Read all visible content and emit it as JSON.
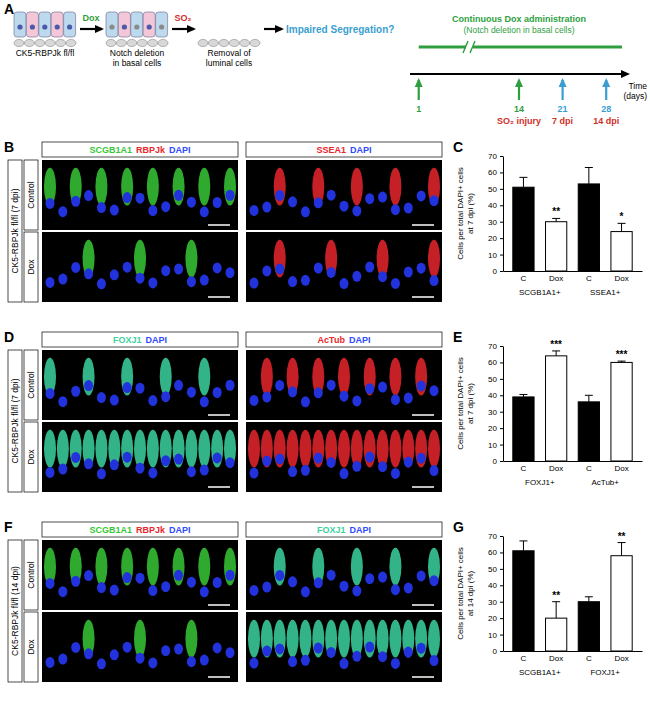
{
  "figure": {
    "schematic": {
      "letter": "A",
      "stages": [
        [
          "CK5-RBPJk fl/fl"
        ],
        [
          "Notch deletion",
          "in basal cells"
        ],
        [
          "Removal of",
          "luminal cells"
        ]
      ],
      "steps": [
        {
          "text": "Dox",
          "color": "#2e9e3e"
        },
        {
          "text": "SO₂",
          "color": "#d0302a"
        }
      ],
      "question": {
        "text": "Impaired Segregation?",
        "color": "#3a9fd0"
      },
      "timeline": {
        "bar_label": [
          "Continuous Dox administration",
          "(Notch deletion in basal cells)"
        ],
        "bar_color": "#2e9e3e",
        "axis_label": [
          "Time",
          "(days)"
        ],
        "points": [
          {
            "day": 1,
            "color": "#2e9e3e"
          },
          {
            "day": 14,
            "color": "#2e9e3e",
            "label": "SO₂ injury",
            "label_color": "#d0302a"
          },
          {
            "day": 21,
            "color": "#3a9fd0",
            "label": "7 dpi",
            "label_color": "#d0302a"
          },
          {
            "day": 28,
            "color": "#3a9fd0",
            "label": "14 dpi",
            "label_color": "#d0302a"
          }
        ]
      }
    },
    "image_rows": [
      {
        "letter": "B",
        "row_label": "CK5-RBPJk fl/fl (7 dpi)",
        "conditions": [
          "Control",
          "Dox"
        ],
        "columns": [
          [
            {
              "text": "SCGB1A1",
              "color": "#37c837"
            },
            {
              "text": "RBPJk",
              "color": "#e8262b"
            },
            {
              "text": "DAPI",
              "color": "#2f4bff"
            }
          ],
          [
            {
              "text": "SSEA1",
              "color": "#e8262b"
            },
            {
              "text": "DAPI",
              "color": "#2f4bff"
            }
          ]
        ]
      },
      {
        "letter": "D",
        "row_label": "CK5-RBPJk fl/fl (7 dpi)",
        "conditions": [
          "Control",
          "Dox"
        ],
        "columns": [
          [
            {
              "text": "FOXJ1",
              "color": "#3cd2a0"
            },
            {
              "text": "DAPI",
              "color": "#2f4bff"
            }
          ],
          [
            {
              "text": "AcTub",
              "color": "#e8262b"
            },
            {
              "text": "DAPI",
              "color": "#2f4bff"
            }
          ]
        ]
      },
      {
        "letter": "F",
        "row_label": "CK5-RBPJk fl/fl (14 dpi)",
        "conditions": [
          "Control",
          "Dox"
        ],
        "columns": [
          [
            {
              "text": "SCGB1A1",
              "color": "#37c837"
            },
            {
              "text": "RBPJk",
              "color": "#e8262b"
            },
            {
              "text": "DAPI",
              "color": "#2f4bff"
            }
          ],
          [
            {
              "text": "FOXJ1",
              "color": "#3cd2a0"
            },
            {
              "text": "DAPI",
              "color": "#2f4bff"
            }
          ]
        ]
      }
    ]
  },
  "chart_data": [
    {
      "type": "bar",
      "panel": "C",
      "categories": [
        "C",
        "Dox",
        "C",
        "Dox"
      ],
      "group_labels": [
        "SCGB1A1+",
        "SSEA1+"
      ],
      "values": [
        51,
        30,
        53,
        24
      ],
      "errors": [
        6,
        2,
        10,
        5
      ],
      "significance": [
        null,
        "**",
        null,
        "*"
      ],
      "colors": [
        "#000000",
        "#ffffff",
        "#000000",
        "#ffffff"
      ],
      "y_label": [
        "Cells per total DAPI+ cells",
        "at 7 dpi (%)"
      ],
      "ylim": [
        0,
        70
      ],
      "yticks": [
        0,
        10,
        20,
        30,
        40,
        50,
        60,
        70
      ]
    },
    {
      "type": "bar",
      "panel": "E",
      "categories": [
        "C",
        "Dox",
        "C",
        "Dox"
      ],
      "group_labels": [
        "FOXJ1+",
        "AcTub+"
      ],
      "values": [
        39,
        64,
        36,
        60
      ],
      "errors": [
        1.5,
        3,
        4,
        0.8
      ],
      "significance": [
        null,
        "***",
        null,
        "***"
      ],
      "colors": [
        "#000000",
        "#ffffff",
        "#000000",
        "#ffffff"
      ],
      "y_label": [
        "Cells per total DAPI+ cells",
        "at 7 dpi (%)"
      ],
      "ylim": [
        0,
        70
      ],
      "yticks": [
        0,
        10,
        20,
        30,
        40,
        50,
        60,
        70
      ]
    },
    {
      "type": "bar",
      "panel": "G",
      "categories": [
        "C",
        "Dox",
        "C",
        "Dox"
      ],
      "group_labels": [
        "SCGB1A1+",
        "FOXJ1+"
      ],
      "values": [
        61,
        20,
        30,
        58
      ],
      "errors": [
        6,
        10,
        3,
        8
      ],
      "significance": [
        null,
        "**",
        null,
        "**"
      ],
      "colors": [
        "#000000",
        "#ffffff",
        "#000000",
        "#ffffff"
      ],
      "y_label": [
        "Cells per total DAPI+ cells",
        "at 14 dpi (%)"
      ],
      "ylim": [
        0,
        70
      ],
      "yticks": [
        0,
        10,
        20,
        30,
        40,
        50,
        60,
        70
      ]
    }
  ]
}
